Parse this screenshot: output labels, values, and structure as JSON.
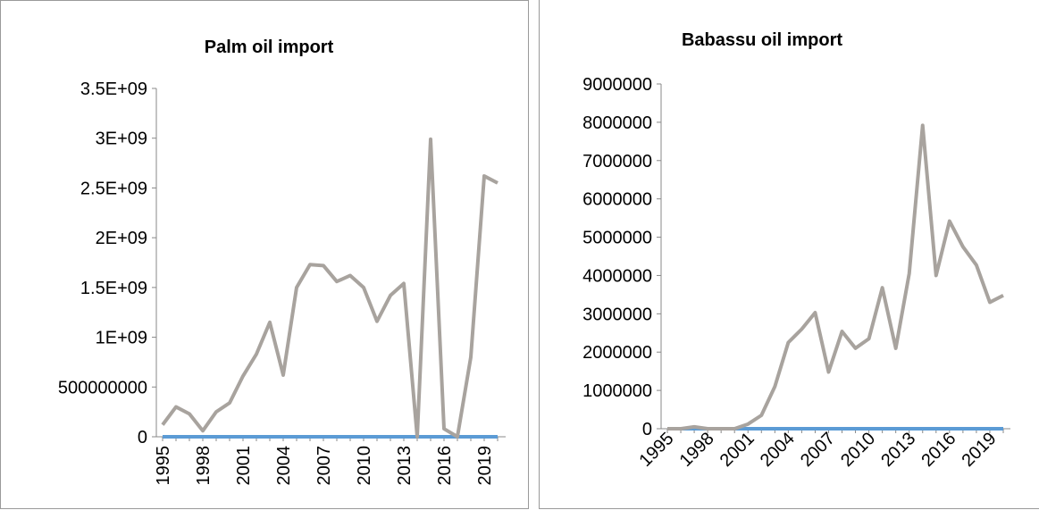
{
  "colors": {
    "series_line": "#a8a39e",
    "baseline": "#5b9bd5",
    "axis": "#888888"
  },
  "chart_data": [
    {
      "type": "line",
      "title": "Palm oil import",
      "xlabel": "",
      "ylabel": "",
      "x": [
        1995,
        1996,
        1997,
        1998,
        1999,
        2000,
        2001,
        2002,
        2003,
        2004,
        2005,
        2006,
        2007,
        2008,
        2009,
        2010,
        2011,
        2012,
        2013,
        2014,
        2015,
        2016,
        2017,
        2018,
        2019,
        2020
      ],
      "series": [
        {
          "values": [
            120000000,
            300000000,
            230000000,
            60000000,
            250000000,
            340000000,
            610000000,
            830000000,
            1150000000,
            620000000,
            1500000000,
            1730000000,
            1720000000,
            1560000000,
            1620000000,
            1500000000,
            1160000000,
            1420000000,
            1540000000,
            0,
            2990000000,
            80000000,
            0,
            800000000,
            2620000000,
            2550000000
          ]
        },
        {
          "values": [
            0,
            0,
            0,
            0,
            0,
            0,
            0,
            0,
            0,
            0,
            0,
            0,
            0,
            0,
            0,
            0,
            0,
            0,
            0,
            0,
            0,
            0,
            0,
            0,
            0,
            0
          ]
        }
      ],
      "yticks": [
        "0",
        "500000000",
        "1E+09",
        "1.5E+09",
        "2E+09",
        "2.5E+09",
        "3E+09",
        "3.5E+09"
      ],
      "ylim": [
        0,
        3500000000
      ],
      "xtick_labels": [
        "1995",
        "1998",
        "2001",
        "2004",
        "2007",
        "2010",
        "2013",
        "2016",
        "2019"
      ],
      "xtick_rotation": "vertical",
      "grid": false,
      "legend": "none"
    },
    {
      "type": "line",
      "title": "Babassu oil import",
      "xlabel": "",
      "ylabel": "",
      "x": [
        1995,
        1996,
        1997,
        1998,
        1999,
        2000,
        2001,
        2002,
        2003,
        2004,
        2005,
        2006,
        2007,
        2008,
        2009,
        2010,
        2011,
        2012,
        2013,
        2014,
        2015,
        2016,
        2017,
        2018,
        2019,
        2020
      ],
      "series": [
        {
          "values": [
            0,
            0,
            50000,
            0,
            0,
            0,
            120000,
            350000,
            1100000,
            2250000,
            2600000,
            3030000,
            1480000,
            2540000,
            2100000,
            2350000,
            3680000,
            2100000,
            4050000,
            7920000,
            4000000,
            5420000,
            4750000,
            4270000,
            3300000,
            3480000
          ]
        },
        {
          "values": [
            0,
            0,
            0,
            0,
            0,
            0,
            0,
            0,
            0,
            0,
            0,
            0,
            0,
            0,
            0,
            0,
            0,
            0,
            0,
            0,
            0,
            0,
            0,
            0,
            0,
            0
          ]
        }
      ],
      "yticks": [
        "0",
        "1000000",
        "2000000",
        "3000000",
        "4000000",
        "5000000",
        "6000000",
        "7000000",
        "8000000",
        "9000000"
      ],
      "ylim": [
        0,
        9000000
      ],
      "xtick_labels": [
        "1995",
        "1998",
        "2001",
        "2004",
        "2007",
        "2010",
        "2013",
        "2016",
        "2019"
      ],
      "xtick_rotation": "diagonal",
      "grid": false,
      "legend": "none"
    }
  ]
}
